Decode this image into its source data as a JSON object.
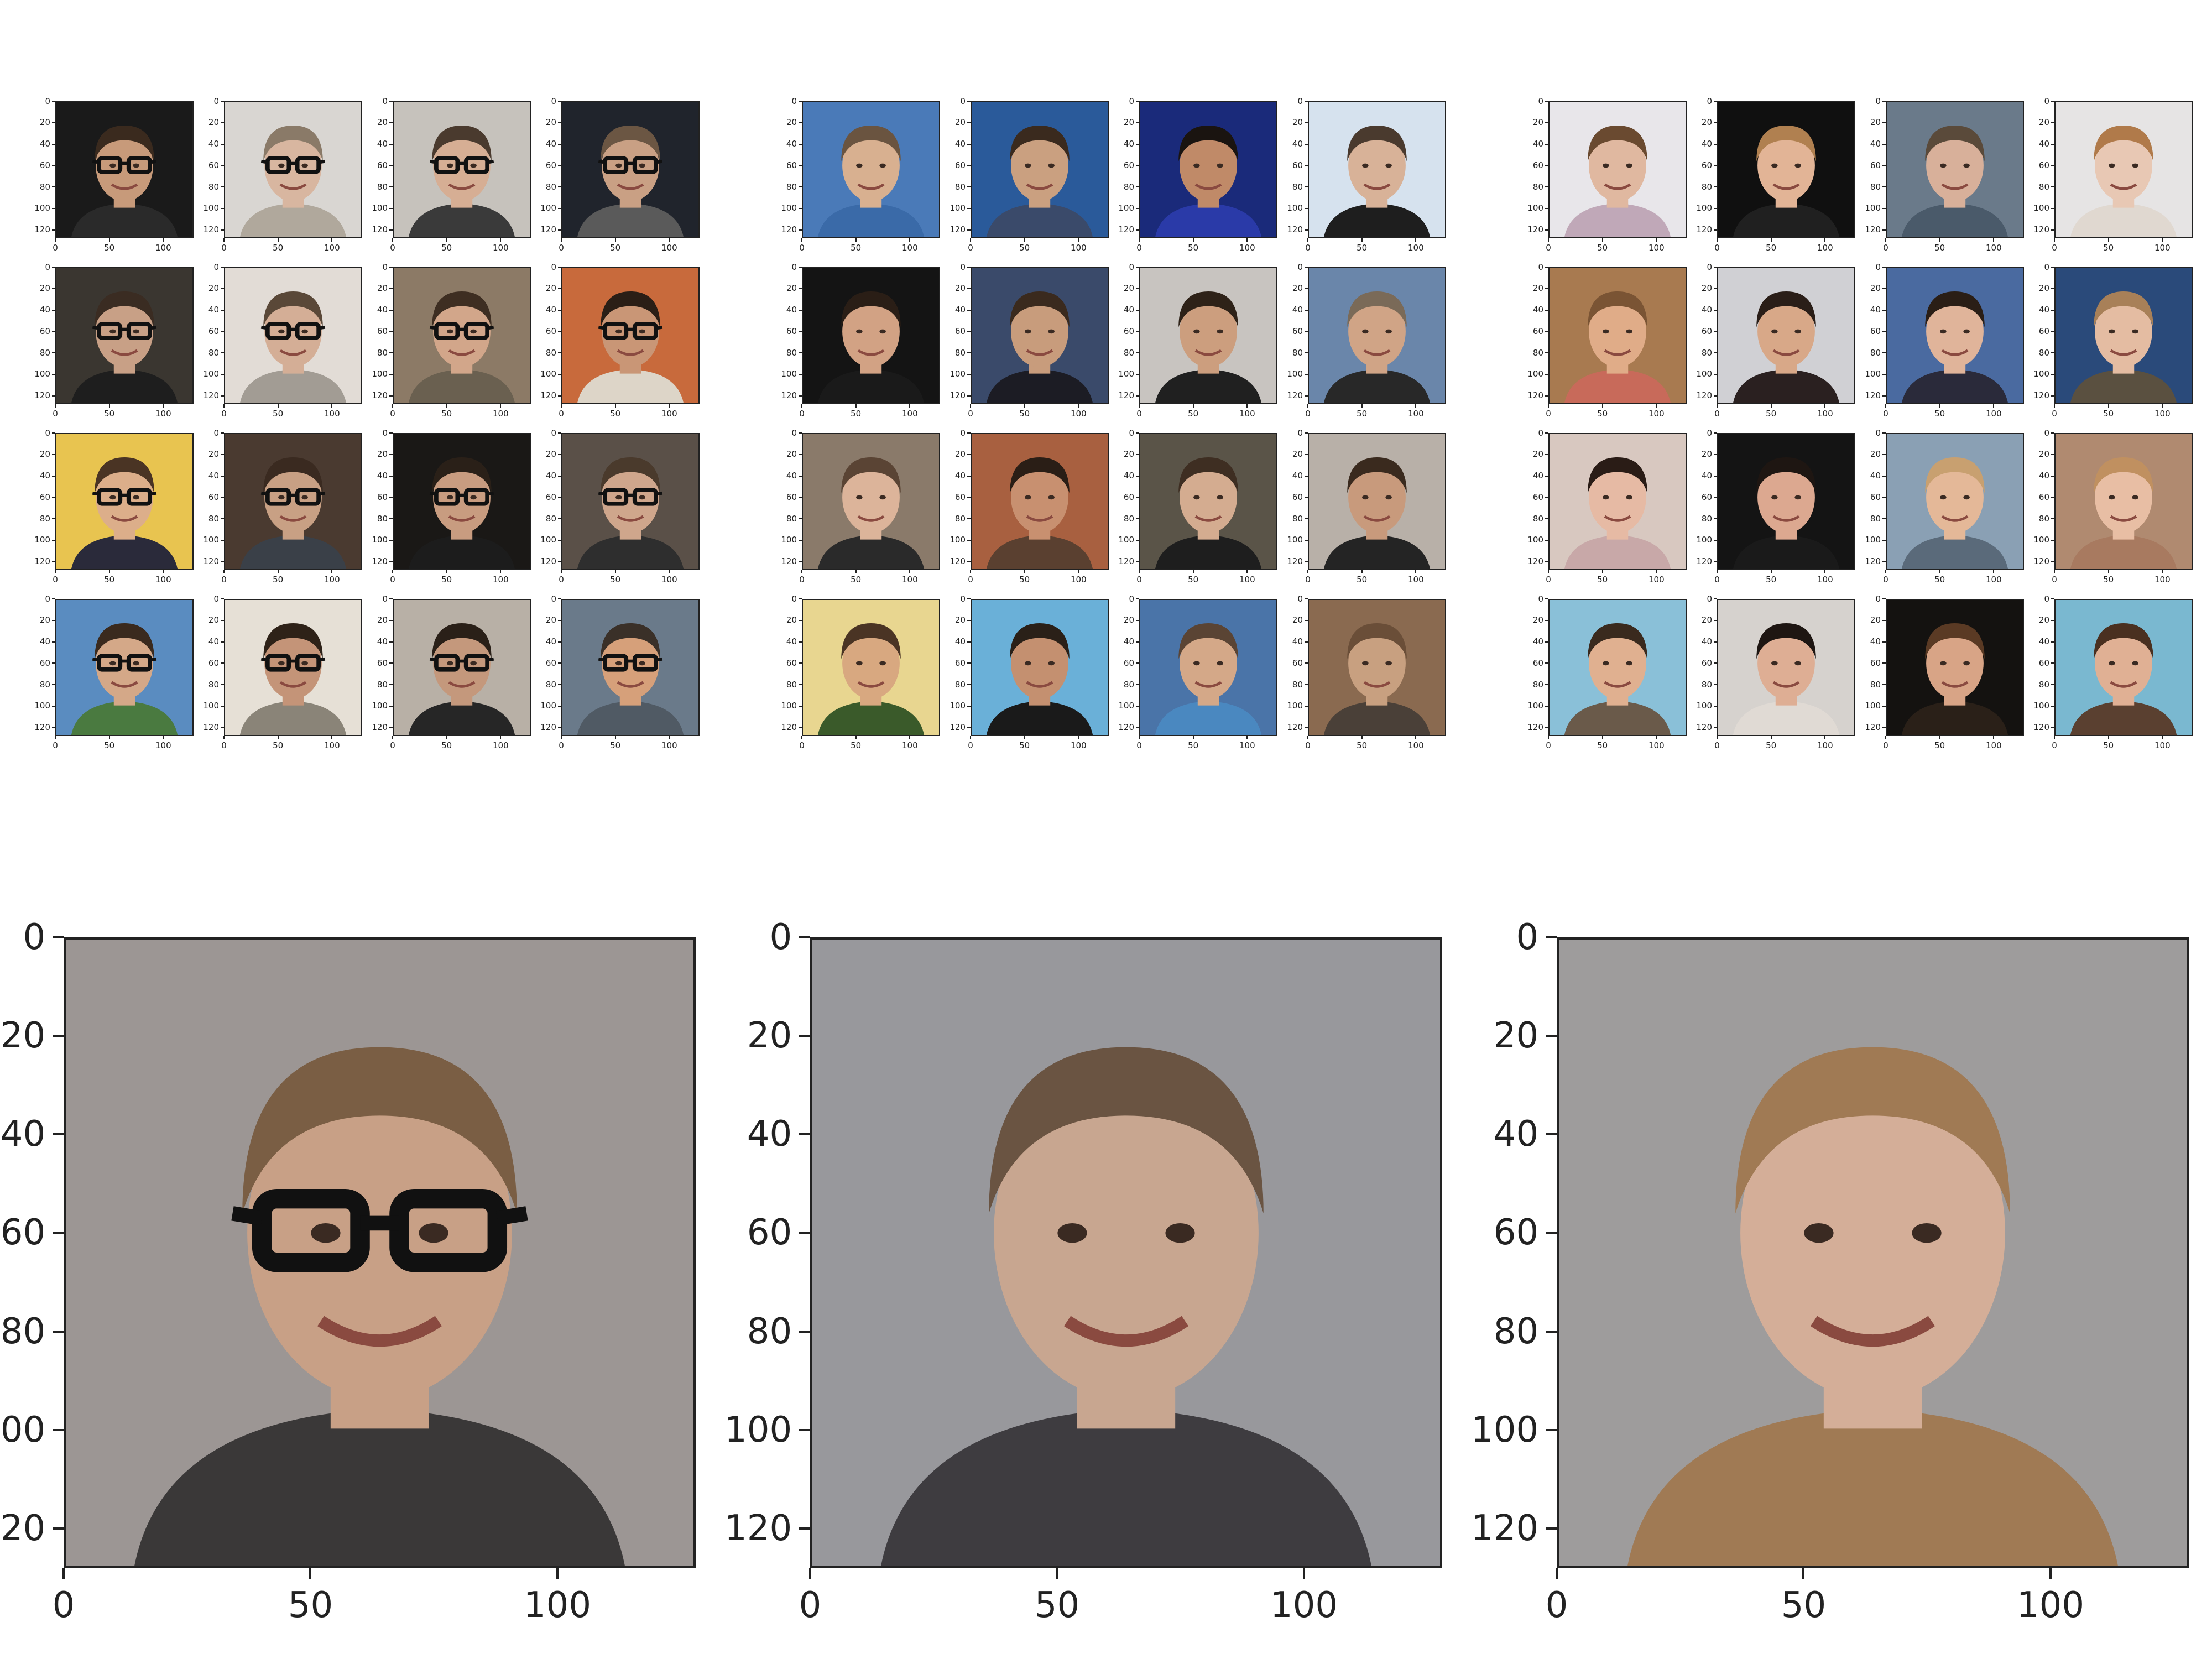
{
  "axes": {
    "x_ticks": [
      "0",
      "50",
      "100"
    ],
    "x_values": [
      0,
      50,
      100
    ],
    "y_ticks": [
      "0",
      "20",
      "40",
      "60",
      "80",
      "100",
      "120"
    ],
    "y_values": [
      0,
      20,
      40,
      60,
      80,
      100,
      120
    ],
    "extent": 128
  },
  "large_y_ticks": [
    "0",
    "20",
    "40",
    "60",
    "80",
    "100",
    "120"
  ],
  "grids": [
    {
      "name": "men-with-glasses",
      "cells": [
        {
          "bg": "#1a1a1a",
          "skin": "#c79a7a",
          "hair": "#3a2a1e",
          "shirt": "#2a2a2a",
          "glasses": true
        },
        {
          "bg": "#d9d6d2",
          "skin": "#d8b6a0",
          "hair": "#8a7a68",
          "shirt": "#b0a89c",
          "glasses": true
        },
        {
          "bg": "#c6c2bc",
          "skin": "#d6ae94",
          "hair": "#4a3a2e",
          "shirt": "#3a3a3a",
          "glasses": true
        },
        {
          "bg": "#20242c",
          "skin": "#c9a084",
          "hair": "#6b5643",
          "shirt": "#5a5a5a",
          "glasses": true
        },
        {
          "bg": "#3a3630",
          "skin": "#c8a086",
          "hair": "#3a2c22",
          "shirt": "#1e1e1e",
          "glasses": true
        },
        {
          "bg": "#e2dcd6",
          "skin": "#d4ae96",
          "hair": "#5a4838",
          "shirt": "#a29c94",
          "glasses": true
        },
        {
          "bg": "#8c7a66",
          "skin": "#d2a68a",
          "hair": "#3e2e22",
          "shirt": "#6a6050",
          "glasses": true
        },
        {
          "bg": "#c86a3c",
          "skin": "#c99676",
          "hair": "#2a1e16",
          "shirt": "#ddd5c8",
          "glasses": true
        },
        {
          "bg": "#e8c450",
          "skin": "#dcae8a",
          "hair": "#4a3424",
          "shirt": "#2a2a3a",
          "glasses": true
        },
        {
          "bg": "#4a3a30",
          "skin": "#c8a084",
          "hair": "#3a2a20",
          "shirt": "#3a4048",
          "glasses": true
        },
        {
          "bg": "#1a1816",
          "skin": "#c89c80",
          "hair": "#2a2018",
          "shirt": "#1c1c1c",
          "glasses": true
        },
        {
          "bg": "#5a5048",
          "skin": "#cfa68c",
          "hair": "#4a3a2c",
          "shirt": "#2e2e2e",
          "glasses": true
        },
        {
          "bg": "#5a8cc0",
          "skin": "#d4a888",
          "hair": "#3a2a1e",
          "shirt": "#4a7a40",
          "glasses": true
        },
        {
          "bg": "#e6e0d6",
          "skin": "#c49478",
          "hair": "#2e2218",
          "shirt": "#8a8478",
          "glasses": true
        },
        {
          "bg": "#b8b0a6",
          "skin": "#c4987c",
          "hair": "#2a2018",
          "shirt": "#262626",
          "glasses": true
        },
        {
          "bg": "#6a7a8a",
          "skin": "#d6a07a",
          "hair": "#3a3028",
          "shirt": "#505a64",
          "glasses": true
        }
      ]
    },
    {
      "name": "smiling-men",
      "cells": [
        {
          "bg": "#4a7ab8",
          "skin": "#d8b090",
          "hair": "#6a5440",
          "shirt": "#3a6aa8",
          "glasses": false
        },
        {
          "bg": "#2a5a9a",
          "skin": "#caa080",
          "hair": "#3a2a1e",
          "shirt": "#3a4a6a",
          "glasses": false
        },
        {
          "bg": "#1a2a7a",
          "skin": "#c08a68",
          "hair": "#1a1410",
          "shirt": "#2a3aa8",
          "glasses": false
        },
        {
          "bg": "#d6e2ee",
          "skin": "#d8b298",
          "hair": "#4a3a2e",
          "shirt": "#1e1e1e",
          "glasses": false
        },
        {
          "bg": "#141414",
          "skin": "#d2a284",
          "hair": "#2a1e16",
          "shirt": "#1a1a1a",
          "glasses": false
        },
        {
          "bg": "#3a4a6a",
          "skin": "#c89c7c",
          "hair": "#3a2a1e",
          "shirt": "#1c1c24",
          "glasses": false
        },
        {
          "bg": "#c8c4c0",
          "skin": "#cc9e7e",
          "hair": "#2e2218",
          "shirt": "#202020",
          "glasses": false
        },
        {
          "bg": "#6a86aa",
          "skin": "#d0a486",
          "hair": "#7a6a58",
          "shirt": "#282828",
          "glasses": false
        },
        {
          "bg": "#8a7a6a",
          "skin": "#dcb49a",
          "hair": "#5a4434",
          "shirt": "#2a2a2a",
          "glasses": false
        },
        {
          "bg": "#a86040",
          "skin": "#c89070",
          "hair": "#2a1e16",
          "shirt": "#5a4030",
          "glasses": false
        },
        {
          "bg": "#5a5448",
          "skin": "#d4ac90",
          "hair": "#3e2e22",
          "shirt": "#1e1e1e",
          "glasses": false
        },
        {
          "bg": "#b8b0a8",
          "skin": "#c89a7c",
          "hair": "#3a2a1e",
          "shirt": "#242424",
          "glasses": false
        },
        {
          "bg": "#e8d690",
          "skin": "#d8a880",
          "hair": "#4a3424",
          "shirt": "#3a5a2a",
          "glasses": false
        },
        {
          "bg": "#6ab0d8",
          "skin": "#c49070",
          "hair": "#2a2018",
          "shirt": "#1a1a1a",
          "glasses": false
        },
        {
          "bg": "#4a74a8",
          "skin": "#d4a888",
          "hair": "#5a4434",
          "shirt": "#4a88c0",
          "glasses": false
        },
        {
          "bg": "#8a6a50",
          "skin": "#c8a080",
          "hair": "#6a4e38",
          "shirt": "#4a4038",
          "glasses": false
        }
      ]
    },
    {
      "name": "women",
      "cells": [
        {
          "bg": "#e8e6ea",
          "skin": "#e0b8a0",
          "hair": "#6a4a30",
          "shirt": "#c0a8b8",
          "glasses": false
        },
        {
          "bg": "#101010",
          "skin": "#e2b496",
          "hair": "#b08050",
          "shirt": "#202020",
          "glasses": false
        },
        {
          "bg": "#6a7a8a",
          "skin": "#d8b09a",
          "hair": "#5a4a3a",
          "shirt": "#4a5a6a",
          "glasses": false
        },
        {
          "bg": "#e6e4e4",
          "skin": "#e8c8b4",
          "hair": "#b07a4a",
          "shirt": "#e0d8d0",
          "glasses": false
        },
        {
          "bg": "#a87a50",
          "skin": "#e0ac88",
          "hair": "#7a5434",
          "shirt": "#c86a5a",
          "glasses": false
        },
        {
          "bg": "#d0d0d4",
          "skin": "#d8a888",
          "hair": "#2a1e18",
          "shirt": "#2a2020",
          "glasses": false
        },
        {
          "bg": "#4a6aa0",
          "skin": "#e0b49a",
          "hair": "#2a1e16",
          "shirt": "#2a2a3a",
          "glasses": false
        },
        {
          "bg": "#2a4a7a",
          "skin": "#e4bca2",
          "hair": "#a88058",
          "shirt": "#5a5040",
          "glasses": false
        },
        {
          "bg": "#d8c8c0",
          "skin": "#e6baa4",
          "hair": "#2a1c16",
          "shirt": "#c8a8a8",
          "glasses": false
        },
        {
          "bg": "#141414",
          "skin": "#dca890",
          "hair": "#1e1612",
          "shirt": "#1a1a1a",
          "glasses": false
        },
        {
          "bg": "#8aa0b4",
          "skin": "#e4b898",
          "hair": "#c8a070",
          "shirt": "#5a6a7a",
          "glasses": false
        },
        {
          "bg": "#b08a70",
          "skin": "#e8bea4",
          "hair": "#c09060",
          "shirt": "#a87a60",
          "glasses": false
        },
        {
          "bg": "#8ac0d8",
          "skin": "#e0b090",
          "hair": "#3a2a1e",
          "shirt": "#6a5a4a",
          "glasses": false
        },
        {
          "bg": "#d6d2ce",
          "skin": "#deae94",
          "hair": "#1e1612",
          "shirt": "#e0dad4",
          "glasses": false
        },
        {
          "bg": "#141210",
          "skin": "#d8a486",
          "hair": "#5a3a24",
          "shirt": "#2a2018",
          "glasses": false
        },
        {
          "bg": "#7ab8d0",
          "skin": "#e0b094",
          "hair": "#4a3020",
          "shirt": "#5a4030",
          "glasses": false
        }
      ]
    }
  ],
  "large": [
    {
      "name": "average-man-glasses",
      "bg": "#9c9694",
      "skin": "#c8a086",
      "hair": "#7a5e44",
      "shirt": "#3a3838",
      "glasses": true
    },
    {
      "name": "average-smiling-man",
      "bg": "#98989c",
      "skin": "#c8a690",
      "hair": "#6a5442",
      "shirt": "#3e3c40",
      "glasses": false
    },
    {
      "name": "average-woman",
      "bg": "#9e9c9c",
      "skin": "#d4ae98",
      "hair": "#a07a54",
      "shirt": "#a07a54",
      "glasses": false
    }
  ]
}
